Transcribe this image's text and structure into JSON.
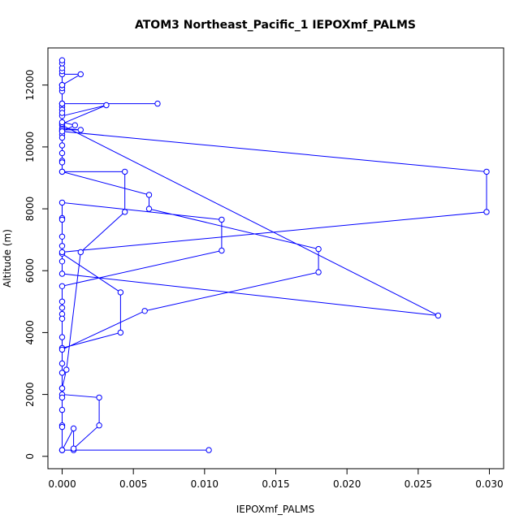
{
  "chart_data": {
    "type": "line",
    "title": "ATOM3 Northeast_Pacific_1 IEPOXmf_PALMS",
    "xlabel": "IEPOXmf_PALMS",
    "ylabel": "Altitude (m)",
    "xlim": [
      -0.001,
      0.031
    ],
    "ylim": [
      -400,
      13200
    ],
    "grid": false,
    "x_ticks": [
      0.0,
      0.005,
      0.01,
      0.015,
      0.02,
      0.025,
      0.03
    ],
    "x_tick_labels": [
      "0.000",
      "0.005",
      "0.010",
      "0.015",
      "0.020",
      "0.025",
      "0.030"
    ],
    "y_ticks": [
      0,
      2000,
      4000,
      6000,
      8000,
      10000,
      12000
    ],
    "y_tick_labels": [
      "0",
      "2000",
      "4000",
      "6000",
      "8000",
      "10000",
      "12000"
    ],
    "series": [
      {
        "color": "#0000ff",
        "marker": "open-circle",
        "points": [
          [
            0.0,
            200
          ],
          [
            0.0103,
            200
          ],
          [
            0.0008,
            200
          ],
          [
            0.0,
            200
          ],
          [
            0.0008,
            900
          ],
          [
            0.0008,
            250
          ],
          [
            0.0026,
            1000
          ],
          [
            0.0026,
            1900
          ],
          [
            0.0,
            2000
          ],
          [
            0.0,
            2200
          ],
          [
            0.0,
            2700
          ],
          [
            0.0,
            3000
          ],
          [
            0.0,
            3500
          ],
          [
            0.0041,
            4000
          ],
          [
            0.0041,
            5300
          ],
          [
            0.0,
            6550
          ],
          [
            0.0,
            6300
          ],
          [
            0.0,
            5900
          ],
          [
            0.0264,
            4550
          ],
          [
            0.0,
            10700
          ],
          [
            0.0,
            11400
          ],
          [
            0.0067,
            11400
          ],
          [
            0.0,
            11400
          ],
          [
            0.0,
            11300
          ],
          [
            0.0,
            10500
          ],
          [
            0.0298,
            9200
          ],
          [
            0.0298,
            7900
          ],
          [
            0.0,
            6600
          ],
          [
            0.0,
            6800
          ],
          [
            0.0,
            7100
          ],
          [
            0.0,
            7700
          ],
          [
            0.0,
            7650
          ],
          [
            0.0,
            8200
          ],
          [
            0.0112,
            7650
          ],
          [
            0.0112,
            6650
          ],
          [
            0.0,
            5500
          ],
          [
            0.0,
            5000
          ],
          [
            0.0,
            4800
          ],
          [
            0.0,
            4600
          ],
          [
            0.0,
            4450
          ],
          [
            0.0,
            3850
          ],
          [
            0.0,
            3450
          ],
          [
            0.0058,
            4700
          ],
          [
            0.018,
            5950
          ],
          [
            0.018,
            6700
          ],
          [
            0.0061,
            8000
          ],
          [
            0.0061,
            8450
          ],
          [
            0.0,
            9200
          ],
          [
            0.0,
            9550
          ],
          [
            0.0,
            10050
          ],
          [
            0.0,
            10400
          ],
          [
            0.0,
            10600
          ],
          [
            0.0013,
            10550
          ],
          [
            0.0,
            10550
          ],
          [
            0.0,
            10750
          ],
          [
            0.0031,
            11350
          ],
          [
            0.0,
            11000
          ],
          [
            0.0,
            11200
          ],
          [
            0.0,
            11400
          ],
          [
            0.0,
            11800
          ],
          [
            0.0,
            11900
          ],
          [
            0.0,
            12000
          ],
          [
            0.0,
            12350
          ],
          [
            0.0013,
            12350
          ],
          [
            0.0,
            12000
          ],
          [
            0.0,
            12450
          ],
          [
            0.0,
            12550
          ],
          [
            0.0,
            12700
          ],
          [
            0.0,
            12800
          ],
          [
            0.0,
            12000
          ],
          [
            0.0,
            11400
          ],
          [
            0.0,
            11100
          ],
          [
            0.0,
            10800
          ],
          [
            0.0009,
            10700
          ],
          [
            0.0,
            10500
          ],
          [
            0.0,
            10300
          ],
          [
            0.0,
            9800
          ],
          [
            0.0,
            9500
          ],
          [
            0.0,
            9200
          ],
          [
            0.0044,
            9200
          ],
          [
            0.0044,
            7900
          ],
          [
            0.0013,
            6600
          ],
          [
            0.0003,
            2800
          ],
          [
            0.0,
            2200
          ],
          [
            0.0,
            1900
          ],
          [
            0.0,
            1500
          ],
          [
            0.0,
            1000
          ],
          [
            0.0,
            950
          ],
          [
            0.0,
            200
          ]
        ]
      }
    ]
  }
}
